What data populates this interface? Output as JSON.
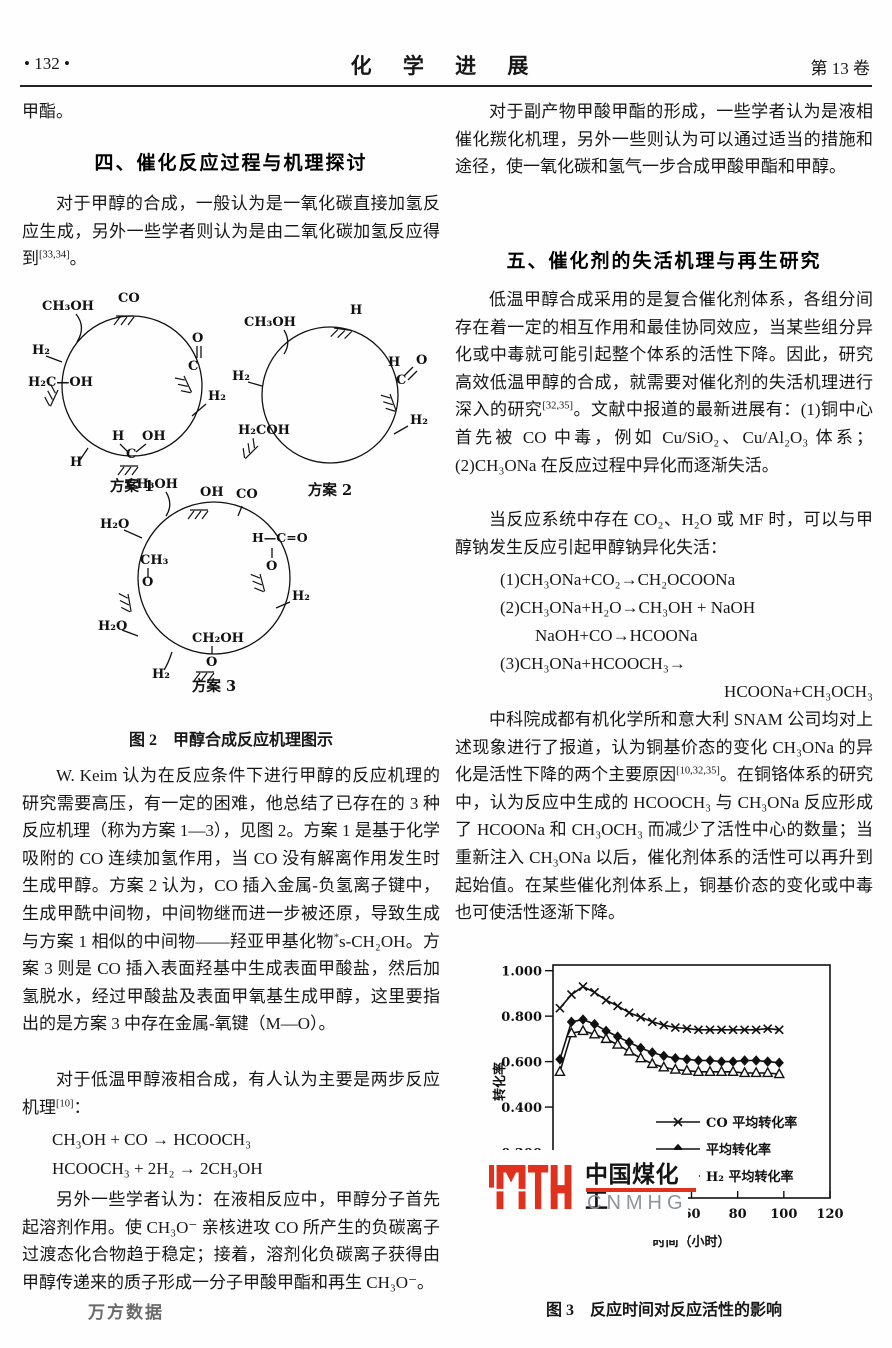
{
  "page": {
    "number": "• 132 •",
    "journal": "化 学 进 展",
    "volume": "第 13 卷"
  },
  "left": {
    "cont": "甲酯。",
    "h4": "四、催化反应过程与机理探讨",
    "p1": "对于甲醇的合成，一般认为是一氧化碳直接加氢反应生成，另外一些学者则认为是由二氧化碳加氢反应得到<sup>[33,34]</sup>。",
    "p2": "W. Keim 认为在反应条件下进行甲醇的反应机理的研究需要高压，有一定的困难，他总结了已存在的 3 种反应机理（称为方案 1—3），见图 2。方案 1 是基于化学吸附的 CO 连续加氢作用，当 CO 没有解离作用发生时生成甲醇。方案 2 认为，CO 插入金属-负氢离子键中，生成甲酰中间物，中间物继而进一步被还原，导致生成与方案 1 相似的中间物——羟亚甲基化物<sup>*</sup>s-CH₂OH。方案 3 则是 CO 插入表面羟基中生成表面甲酸盐，然后加氢脱水，经过甲酸盐及表面甲氧基生成甲醇，这里要指出的是方案 3 中存在金属-氧键（M—O）。",
    "p3": "对于低温甲醇液相合成，有人认为主要是两步反应机理<sup>[10]</sup>：",
    "eq1": "CH₃OH + CO → HCOOCH₃",
    "eq2": "HCOOCH₃ + 2H₂ → 2CH₃OH",
    "p4": "另外一些学者认为：在液相反应中，甲醇分子首先起溶剂作用。使 CH₃O⁻ 亲核进攻 CO 所产生的负碳离子过渡态化合物趋于稳定；接着，溶剂化负碳离子获得由甲醇传递来的质子形成一分子甲酸甲酯和再生 CH₃O⁻。"
  },
  "right": {
    "p1": "对于副产物甲酸甲酯的形成，一些学者认为是液相催化羰化机理，另外一些则认为可以通过适当的措施和途径，使一氧化碳和氢气一步合成甲酸甲酯和甲醇。",
    "h5": "五、催化剂的失活机理与再生研究",
    "p2": "低温甲醇合成采用的是复合催化剂体系，各组分间存在着一定的相互作用和最佳协同效应，当某些组分异化或中毒就可能引起整个体系的活性下降。因此，研究高效低温甲醇的合成，就需要对催化剂的失活机理进行深入的研究<sup>[32,35]</sup>。文献中报道的最新进展有：(1)铜中心首先被 CO 中毒，例如 Cu/SiO₂、Cu/Al₂O₃ 体系；(2)CH₃ONa 在反应过程中异化而逐渐失活。",
    "p3": "当反应系统中存在 CO₂、H₂O 或 MF 时，可以与甲醇钠发生反应引起甲醇钠异化失活：",
    "eq1": "(1)CH₃ONa+CO₂→CH₂OCOONa",
    "eq2": "(2)CH₃ONa+H₂O→CH₃OH + NaOH",
    "eq3": "NaOH+CO→HCOONa",
    "eq4": "(3)CH₃ONa+HCOOCH₃→",
    "eq5": "HCOONa+CH₃OCH₃",
    "p4": "中科院成都有机化学所和意大利 SNAM 公司均对上述现象进行了报道，认为铜基价态的变化 CH₃ONa 的异化是活性下降的两个主要原因<sup>[10,32,35]</sup>。在铜铬体系的研究中，认为反应中生成的 HCOOCH₃ 与 CH₃ONa 反应形成了 HCOONa 和 CH₃OCH₃ 而减少了活性中心的数量；当重新注入 CH₃ONa 以后，催化剂体系的活性可以再升到起始值。在某些催化剂体系上，铜基价态的变化或中毒也可使活性逐渐下降。"
  },
  "figure2": {
    "caption": "图 2　甲醇合成反应机理图示",
    "scheme1": {
      "title": "方案 1",
      "labels": {
        "ch3oh": "CH₃OH",
        "co": "CO",
        "h2_left": "H₂",
        "h2c_oh": "H₂C—OH",
        "o": "O",
        "c": "C",
        "h2_right": "H₂",
        "h": "H",
        "oh": "OH",
        "c2": "C",
        "h_left": "H"
      }
    },
    "scheme2": {
      "title": "方案 2",
      "labels": {
        "ch3oh": "CH₃OH",
        "h_top": "H",
        "h2_left": "H₂",
        "h": "H",
        "c": "C",
        "o": "O",
        "h2_right": "H₂",
        "h2coh": "H₂COH"
      }
    },
    "scheme3": {
      "title": "方案 3",
      "labels": {
        "ch3oh": "CH₃OH",
        "oh": "OH",
        "co": "CO",
        "hco": "H—C=O",
        "o_r": "O",
        "h2_r": "H₂",
        "ch2oh": "CH₂OH",
        "o_b": "O",
        "h2_b": "H₂",
        "h2o_low": "H₂O",
        "h2o_up": "H₂O",
        "ch3": "CH₃",
        "o_l": "O"
      }
    }
  },
  "chart_data": {
    "type": "line",
    "title": "",
    "xlabel": "时间（小时）",
    "ylabel": "转化率",
    "xlim": [
      0,
      120
    ],
    "ylim": [
      0,
      1.025
    ],
    "xticks": [
      0,
      20,
      40,
      60,
      80,
      100,
      120
    ],
    "ytick_values": [
      1.0,
      0.8,
      0.6,
      0.4,
      0.2
    ],
    "ytick_labels": [
      "1.000",
      "0.800",
      "0.600",
      "0.400",
      "0.200"
    ],
    "grid": false,
    "legend_position": "inside-right-bottom",
    "x": [
      3,
      8,
      13,
      18,
      23,
      28,
      33,
      38,
      43,
      48,
      53,
      58,
      63,
      68,
      73,
      78,
      83,
      88,
      93,
      98
    ],
    "series": [
      {
        "name": "CO 平均转化率",
        "marker": "x",
        "values": [
          0.835,
          0.895,
          0.93,
          0.905,
          0.87,
          0.845,
          0.815,
          0.795,
          0.775,
          0.76,
          0.75,
          0.745,
          0.74,
          0.74,
          0.74,
          0.74,
          0.74,
          0.74,
          0.745,
          0.74
        ]
      },
      {
        "name": "平均转化率",
        "marker": "diamond",
        "values": [
          0.61,
          0.775,
          0.785,
          0.765,
          0.735,
          0.71,
          0.685,
          0.66,
          0.64,
          0.625,
          0.615,
          0.61,
          0.605,
          0.605,
          0.6,
          0.6,
          0.605,
          0.605,
          0.6,
          0.595
        ]
      },
      {
        "name": "H₂ 平均转化率",
        "marker": "triangle",
        "values": [
          0.555,
          0.725,
          0.735,
          0.72,
          0.7,
          0.675,
          0.645,
          0.615,
          0.59,
          0.575,
          0.565,
          0.56,
          0.555,
          0.555,
          0.555,
          0.555,
          0.55,
          0.55,
          0.55,
          0.545
        ]
      }
    ]
  },
  "figure3": {
    "caption": "图 3　反应时间对反应活性的影响"
  },
  "watermarks": {
    "wanfang": "万方数据",
    "logo_cn": "中国煤化工",
    "logo_en": "CNMHG",
    "logo_red": "#e0301e"
  }
}
